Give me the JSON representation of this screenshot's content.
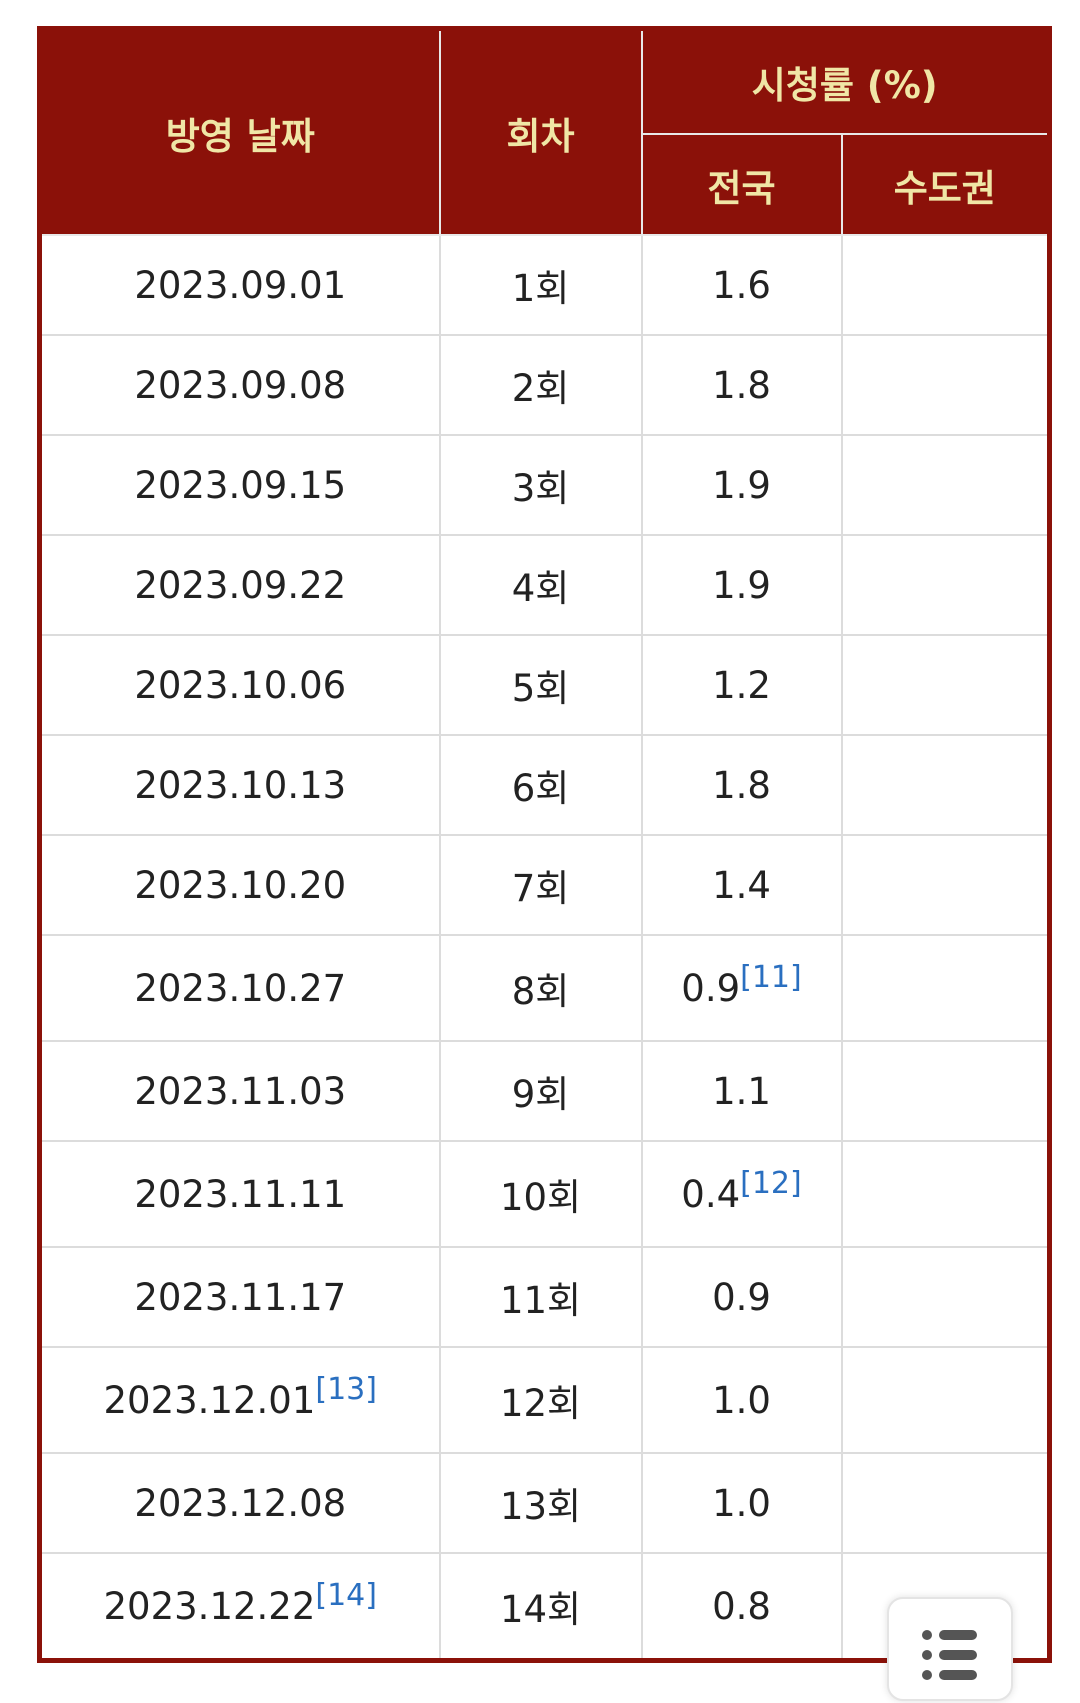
{
  "table": {
    "headers": {
      "date": "방영 날짜",
      "episode": "회차",
      "rating": "시청률 (%)",
      "national": "전국",
      "capital": "수도권"
    },
    "rows": [
      {
        "date": "2023.09.01",
        "episode": "1회",
        "national": "1.6"
      },
      {
        "date": "2023.09.08",
        "episode": "2회",
        "national": "1.8"
      },
      {
        "date": "2023.09.15",
        "episode": "3회",
        "national": "1.9"
      },
      {
        "date": "2023.09.22",
        "episode": "4회",
        "national": "1.9"
      },
      {
        "date": "2023.10.06",
        "episode": "5회",
        "national": "1.2"
      },
      {
        "date": "2023.10.13",
        "episode": "6회",
        "national": "1.8"
      },
      {
        "date": "2023.10.20",
        "episode": "7회",
        "national": "1.4"
      },
      {
        "date": "2023.10.27",
        "episode": "8회",
        "national": "0.9",
        "national_note": "[11]"
      },
      {
        "date": "2023.11.03",
        "episode": "9회",
        "national": "1.1"
      },
      {
        "date": "2023.11.11",
        "episode": "10회",
        "national": "0.4",
        "national_note": "[12]"
      },
      {
        "date": "2023.11.17",
        "episode": "11회",
        "national": "0.9"
      },
      {
        "date": "2023.12.01",
        "date_note": "[13]",
        "episode": "12회",
        "national": "1.0"
      },
      {
        "date": "2023.12.08",
        "episode": "13회",
        "national": "1.0"
      },
      {
        "date": "2023.12.22",
        "date_note": "[14]",
        "episode": "14회",
        "national": "0.8"
      }
    ]
  }
}
